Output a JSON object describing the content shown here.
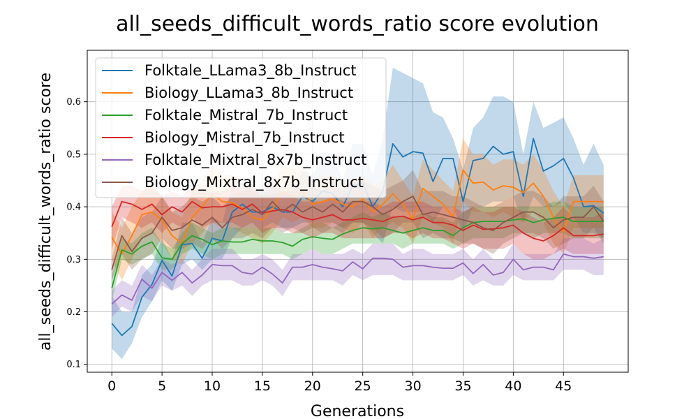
{
  "chart_data": {
    "type": "line",
    "title": "all_seeds_difficult_words_ratio score evolution",
    "xlabel": "Generations",
    "ylabel": "all_seeds_difficult_words_ratio score",
    "xlim": [
      -2.45,
      51.45
    ],
    "ylim": [
      0.085,
      0.698
    ],
    "xticks": [
      0,
      5,
      10,
      15,
      20,
      25,
      30,
      35,
      40,
      45
    ],
    "yticks": [
      0.1,
      0.2,
      0.3,
      0.4,
      0.5,
      0.6
    ],
    "xtick_labels": [
      "0",
      "5",
      "10",
      "15",
      "20",
      "25",
      "30",
      "35",
      "40",
      "45"
    ],
    "ytick_labels": [
      "0.1",
      "0.2",
      "0.3",
      "0.4",
      "0.5",
      "0.6"
    ],
    "grid": true,
    "legend_position": "upper-left",
    "x": [
      0,
      1,
      2,
      3,
      4,
      5,
      6,
      7,
      8,
      9,
      10,
      11,
      12,
      13,
      14,
      15,
      16,
      17,
      18,
      19,
      20,
      21,
      22,
      23,
      24,
      25,
      26,
      27,
      28,
      29,
      30,
      31,
      32,
      33,
      34,
      35,
      36,
      37,
      38,
      39,
      40,
      41,
      42,
      43,
      44,
      45,
      46,
      47,
      48,
      49
    ],
    "series": [
      {
        "name": "Folktale_LLama3_8b_Instruct",
        "color": "#1f77b4",
        "values": [
          0.178,
          0.155,
          0.172,
          0.228,
          0.252,
          0.298,
          0.268,
          0.328,
          0.33,
          0.302,
          0.34,
          0.335,
          0.39,
          0.405,
          0.39,
          0.39,
          0.4,
          0.39,
          0.39,
          0.42,
          0.41,
          0.43,
          0.425,
          0.4,
          0.44,
          0.445,
          0.4,
          0.43,
          0.52,
          0.495,
          0.505,
          0.502,
          0.448,
          0.492,
          0.492,
          0.41,
          0.488,
          0.492,
          0.515,
          0.5,
          0.505,
          0.42,
          0.53,
          0.468,
          0.478,
          0.492,
          0.455,
          0.4,
          0.402,
          0.388
        ],
        "band_lower": [
          0.13,
          0.11,
          0.14,
          0.19,
          0.22,
          0.26,
          0.24,
          0.29,
          0.3,
          0.28,
          0.3,
          0.3,
          0.34,
          0.36,
          0.36,
          0.36,
          0.37,
          0.36,
          0.36,
          0.37,
          0.37,
          0.37,
          0.37,
          0.36,
          0.37,
          0.37,
          0.35,
          0.33,
          0.4,
          0.39,
          0.39,
          0.39,
          0.37,
          0.4,
          0.4,
          0.35,
          0.4,
          0.4,
          0.41,
          0.41,
          0.42,
          0.37,
          0.42,
          0.4,
          0.4,
          0.41,
          0.38,
          0.35,
          0.35,
          0.34
        ],
        "band_upper": [
          0.23,
          0.2,
          0.2,
          0.27,
          0.29,
          0.34,
          0.3,
          0.37,
          0.37,
          0.33,
          0.38,
          0.37,
          0.44,
          0.45,
          0.43,
          0.43,
          0.44,
          0.43,
          0.43,
          0.47,
          0.46,
          0.5,
          0.5,
          0.45,
          0.52,
          0.52,
          0.46,
          0.53,
          0.665,
          0.655,
          0.645,
          0.635,
          0.58,
          0.57,
          0.53,
          0.47,
          0.55,
          0.57,
          0.61,
          0.61,
          0.6,
          0.5,
          0.6,
          0.55,
          0.56,
          0.57,
          0.53,
          0.48,
          0.52,
          0.48
        ]
      },
      {
        "name": "Biology_LLama3_8b_Instruct",
        "color": "#ff7f0e",
        "values": [
          0.342,
          0.31,
          0.345,
          0.385,
          0.39,
          0.375,
          0.345,
          0.33,
          0.38,
          0.4,
          0.425,
          0.41,
          0.408,
          0.397,
          0.38,
          0.375,
          0.395,
          0.43,
          0.42,
          0.43,
          0.405,
          0.41,
          0.415,
          0.405,
          0.4,
          0.415,
          0.39,
          0.405,
          0.425,
          0.405,
          0.375,
          0.435,
          0.42,
          0.405,
          0.38,
          0.47,
          0.445,
          0.447,
          0.432,
          0.44,
          0.437,
          0.427,
          0.445,
          0.42,
          0.38,
          0.352,
          0.41,
          0.41,
          0.41,
          0.41
        ],
        "band_lower": [
          0.3,
          0.26,
          0.3,
          0.34,
          0.35,
          0.33,
          0.3,
          0.29,
          0.33,
          0.35,
          0.37,
          0.36,
          0.36,
          0.35,
          0.34,
          0.33,
          0.35,
          0.38,
          0.37,
          0.38,
          0.36,
          0.36,
          0.37,
          0.36,
          0.35,
          0.37,
          0.34,
          0.36,
          0.37,
          0.36,
          0.33,
          0.38,
          0.37,
          0.36,
          0.33,
          0.41,
          0.39,
          0.39,
          0.38,
          0.39,
          0.38,
          0.37,
          0.39,
          0.37,
          0.33,
          0.31,
          0.36,
          0.36,
          0.36,
          0.36
        ],
        "band_upper": [
          0.39,
          0.36,
          0.4,
          0.43,
          0.44,
          0.42,
          0.39,
          0.38,
          0.43,
          0.45,
          0.48,
          0.46,
          0.46,
          0.45,
          0.43,
          0.42,
          0.44,
          0.48,
          0.47,
          0.48,
          0.45,
          0.46,
          0.46,
          0.45,
          0.45,
          0.46,
          0.44,
          0.45,
          0.48,
          0.45,
          0.42,
          0.49,
          0.47,
          0.45,
          0.43,
          0.53,
          0.5,
          0.5,
          0.48,
          0.49,
          0.49,
          0.48,
          0.5,
          0.47,
          0.43,
          0.4,
          0.46,
          0.46,
          0.46,
          0.46
        ]
      },
      {
        "name": "Folktale_Mistral_7b_Instruct",
        "color": "#2ca02c",
        "values": [
          0.245,
          0.318,
          0.31,
          0.325,
          0.333,
          0.303,
          0.3,
          0.33,
          0.345,
          0.338,
          0.328,
          0.335,
          0.333,
          0.333,
          0.338,
          0.335,
          0.335,
          0.332,
          0.325,
          0.338,
          0.343,
          0.34,
          0.338,
          0.348,
          0.355,
          0.36,
          0.358,
          0.36,
          0.355,
          0.35,
          0.355,
          0.36,
          0.355,
          0.355,
          0.345,
          0.36,
          0.37,
          0.372,
          0.372,
          0.372,
          0.375,
          0.377,
          0.37,
          0.375,
          0.378,
          0.38,
          0.372,
          0.372,
          0.372,
          0.372
        ],
        "band_lower": [
          0.22,
          0.3,
          0.29,
          0.3,
          0.31,
          0.28,
          0.28,
          0.31,
          0.32,
          0.31,
          0.3,
          0.31,
          0.31,
          0.31,
          0.31,
          0.31,
          0.31,
          0.31,
          0.3,
          0.31,
          0.32,
          0.31,
          0.31,
          0.32,
          0.33,
          0.33,
          0.33,
          0.33,
          0.33,
          0.32,
          0.33,
          0.33,
          0.33,
          0.33,
          0.32,
          0.33,
          0.34,
          0.34,
          0.34,
          0.34,
          0.35,
          0.35,
          0.34,
          0.35,
          0.35,
          0.35,
          0.34,
          0.34,
          0.34,
          0.34
        ],
        "band_upper": [
          0.27,
          0.34,
          0.33,
          0.35,
          0.36,
          0.33,
          0.32,
          0.35,
          0.37,
          0.36,
          0.35,
          0.36,
          0.36,
          0.36,
          0.36,
          0.36,
          0.36,
          0.35,
          0.35,
          0.36,
          0.37,
          0.37,
          0.36,
          0.37,
          0.38,
          0.39,
          0.38,
          0.39,
          0.38,
          0.38,
          0.38,
          0.39,
          0.38,
          0.38,
          0.37,
          0.39,
          0.4,
          0.4,
          0.4,
          0.4,
          0.4,
          0.4,
          0.4,
          0.4,
          0.41,
          0.41,
          0.4,
          0.4,
          0.4,
          0.4
        ]
      },
      {
        "name": "Biology_Mistral_7b_Instruct",
        "color": "#d62728",
        "values": [
          0.362,
          0.41,
          0.405,
          0.395,
          0.405,
          0.385,
          0.4,
          0.39,
          0.41,
          0.398,
          0.4,
          0.4,
          0.405,
          0.395,
          0.405,
          0.388,
          0.392,
          0.395,
          0.39,
          0.38,
          0.375,
          0.38,
          0.385,
          0.375,
          0.375,
          0.378,
          0.375,
          0.372,
          0.38,
          0.382,
          0.375,
          0.38,
          0.37,
          0.37,
          0.365,
          0.355,
          0.365,
          0.357,
          0.358,
          0.36,
          0.365,
          0.35,
          0.34,
          0.335,
          0.345,
          0.36,
          0.345,
          0.345,
          0.345,
          0.348
        ],
        "band_lower": [
          0.32,
          0.38,
          0.37,
          0.36,
          0.37,
          0.35,
          0.37,
          0.36,
          0.38,
          0.36,
          0.37,
          0.37,
          0.37,
          0.36,
          0.37,
          0.35,
          0.36,
          0.36,
          0.35,
          0.35,
          0.34,
          0.35,
          0.35,
          0.34,
          0.34,
          0.34,
          0.34,
          0.34,
          0.35,
          0.35,
          0.34,
          0.35,
          0.34,
          0.34,
          0.33,
          0.32,
          0.33,
          0.32,
          0.32,
          0.32,
          0.33,
          0.31,
          0.3,
          0.3,
          0.31,
          0.32,
          0.31,
          0.31,
          0.31,
          0.31
        ],
        "band_upper": [
          0.4,
          0.44,
          0.44,
          0.43,
          0.44,
          0.42,
          0.43,
          0.42,
          0.44,
          0.43,
          0.43,
          0.43,
          0.44,
          0.43,
          0.44,
          0.42,
          0.42,
          0.43,
          0.42,
          0.41,
          0.41,
          0.41,
          0.42,
          0.41,
          0.41,
          0.41,
          0.41,
          0.4,
          0.41,
          0.41,
          0.41,
          0.41,
          0.4,
          0.4,
          0.4,
          0.39,
          0.4,
          0.39,
          0.39,
          0.4,
          0.4,
          0.39,
          0.38,
          0.37,
          0.38,
          0.4,
          0.38,
          0.38,
          0.38,
          0.39
        ]
      },
      {
        "name": "Folktale_Mixtral_8x7b_Instruct",
        "color": "#9467bd",
        "values": [
          0.215,
          0.232,
          0.222,
          0.262,
          0.245,
          0.275,
          0.26,
          0.275,
          0.255,
          0.27,
          0.29,
          0.288,
          0.288,
          0.275,
          0.272,
          0.285,
          0.272,
          0.255,
          0.285,
          0.285,
          0.29,
          0.285,
          0.282,
          0.278,
          0.295,
          0.282,
          0.302,
          0.302,
          0.3,
          0.285,
          0.288,
          0.288,
          0.285,
          0.283,
          0.283,
          0.293,
          0.273,
          0.29,
          0.27,
          0.275,
          0.3,
          0.28,
          0.285,
          0.285,
          0.28,
          0.31,
          0.305,
          0.305,
          0.302,
          0.305
        ],
        "band_lower": [
          0.19,
          0.21,
          0.2,
          0.23,
          0.22,
          0.25,
          0.24,
          0.25,
          0.23,
          0.25,
          0.26,
          0.26,
          0.26,
          0.25,
          0.25,
          0.26,
          0.25,
          0.23,
          0.26,
          0.26,
          0.26,
          0.26,
          0.26,
          0.25,
          0.27,
          0.26,
          0.27,
          0.27,
          0.27,
          0.26,
          0.26,
          0.26,
          0.26,
          0.26,
          0.26,
          0.27,
          0.25,
          0.26,
          0.25,
          0.25,
          0.27,
          0.26,
          0.26,
          0.26,
          0.26,
          0.28,
          0.28,
          0.28,
          0.27,
          0.27
        ],
        "band_upper": [
          0.24,
          0.26,
          0.25,
          0.29,
          0.27,
          0.3,
          0.29,
          0.3,
          0.28,
          0.3,
          0.32,
          0.32,
          0.32,
          0.3,
          0.3,
          0.31,
          0.3,
          0.28,
          0.31,
          0.31,
          0.32,
          0.31,
          0.31,
          0.31,
          0.32,
          0.31,
          0.33,
          0.33,
          0.33,
          0.31,
          0.32,
          0.32,
          0.31,
          0.31,
          0.31,
          0.32,
          0.3,
          0.32,
          0.3,
          0.3,
          0.33,
          0.31,
          0.31,
          0.31,
          0.31,
          0.34,
          0.34,
          0.34,
          0.33,
          0.34
        ]
      },
      {
        "name": "Biology_Mixtral_8x7b_Instruct",
        "color": "#8c564b",
        "values": [
          0.28,
          0.345,
          0.315,
          0.34,
          0.35,
          0.38,
          0.355,
          0.36,
          0.375,
          0.365,
          0.38,
          0.36,
          0.38,
          0.385,
          0.395,
          0.385,
          0.41,
          0.39,
          0.405,
          0.39,
          0.4,
          0.39,
          0.405,
          0.39,
          0.41,
          0.41,
          0.4,
          0.385,
          0.395,
          0.41,
          0.42,
          0.385,
          0.39,
          0.385,
          0.38,
          0.375,
          0.37,
          0.36,
          0.355,
          0.37,
          0.38,
          0.39,
          0.39,
          0.38,
          0.36,
          0.375,
          0.38,
          0.38,
          0.4,
          0.372
        ],
        "band_lower": [
          0.26,
          0.31,
          0.28,
          0.3,
          0.31,
          0.34,
          0.32,
          0.32,
          0.33,
          0.32,
          0.34,
          0.32,
          0.34,
          0.34,
          0.35,
          0.34,
          0.36,
          0.35,
          0.36,
          0.35,
          0.36,
          0.35,
          0.36,
          0.35,
          0.37,
          0.37,
          0.36,
          0.34,
          0.35,
          0.37,
          0.37,
          0.34,
          0.35,
          0.34,
          0.34,
          0.33,
          0.33,
          0.32,
          0.31,
          0.33,
          0.34,
          0.35,
          0.35,
          0.34,
          0.32,
          0.33,
          0.34,
          0.34,
          0.36,
          0.33
        ],
        "band_upper": [
          0.3,
          0.38,
          0.35,
          0.38,
          0.39,
          0.42,
          0.39,
          0.4,
          0.42,
          0.41,
          0.42,
          0.4,
          0.42,
          0.43,
          0.44,
          0.43,
          0.46,
          0.43,
          0.45,
          0.43,
          0.44,
          0.43,
          0.45,
          0.43,
          0.45,
          0.45,
          0.44,
          0.43,
          0.44,
          0.45,
          0.47,
          0.43,
          0.43,
          0.43,
          0.42,
          0.42,
          0.41,
          0.4,
          0.4,
          0.41,
          0.42,
          0.43,
          0.43,
          0.42,
          0.4,
          0.42,
          0.42,
          0.42,
          0.44,
          0.41
        ]
      }
    ]
  }
}
